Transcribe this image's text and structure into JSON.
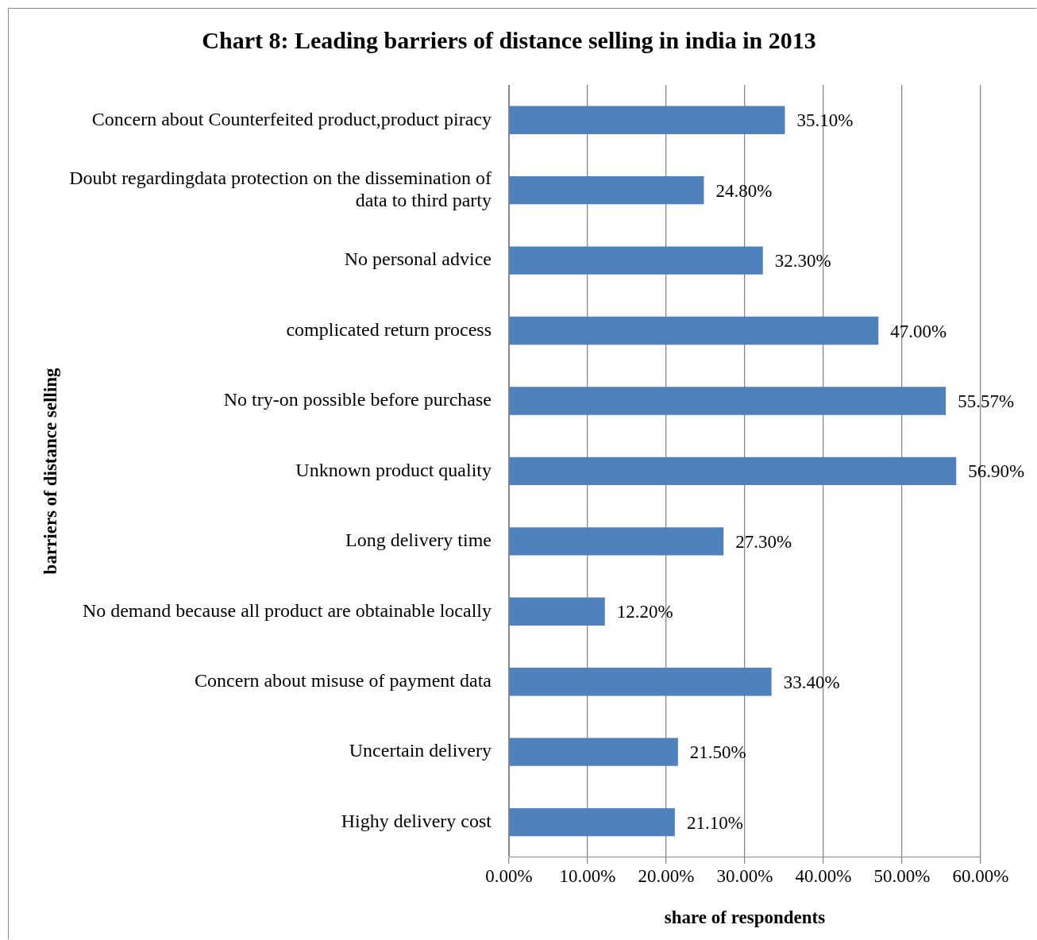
{
  "chart_data": {
    "type": "bar",
    "orientation": "horizontal",
    "title": "Chart 8: Leading barriers of distance selling in india in 2013",
    "xlabel": "share of respondents",
    "ylabel": "barriers of distance selling",
    "categories": [
      "Concern about Counterfeited product,product piracy",
      "Doubt regardingdata protection on the dissemination of data to third party",
      "No personal advice",
      "complicated return process",
      "No try-on possible before purchase",
      "Unknown product quality",
      "Long delivery time",
      "No demand because all product are obtainable locally",
      "Concern about misuse of payment data",
      "Uncertain delivery",
      "Highy delivery cost"
    ],
    "values": [
      35.1,
      24.8,
      32.3,
      47.0,
      55.57,
      56.9,
      27.3,
      12.2,
      33.4,
      21.5,
      21.1
    ],
    "value_labels": [
      "35.10%",
      "24.80%",
      "32.30%",
      "47.00%",
      "55.57%",
      "56.90%",
      "27.30%",
      "12.20%",
      "33.40%",
      "21.50%",
      "21.10%"
    ],
    "color": "#4f81bd",
    "xlim": [
      0,
      60
    ],
    "xticks": [
      {
        "value": 0,
        "label": "0.00%"
      },
      {
        "value": 10,
        "label": "10.00%"
      },
      {
        "value": 20,
        "label": "20.00%"
      },
      {
        "value": 30,
        "label": "30.00%"
      },
      {
        "value": 40,
        "label": "40.00%"
      },
      {
        "value": 50,
        "label": "50.00%"
      },
      {
        "value": 60,
        "label": "60.00%"
      }
    ],
    "grid": "x",
    "legend": false
  }
}
